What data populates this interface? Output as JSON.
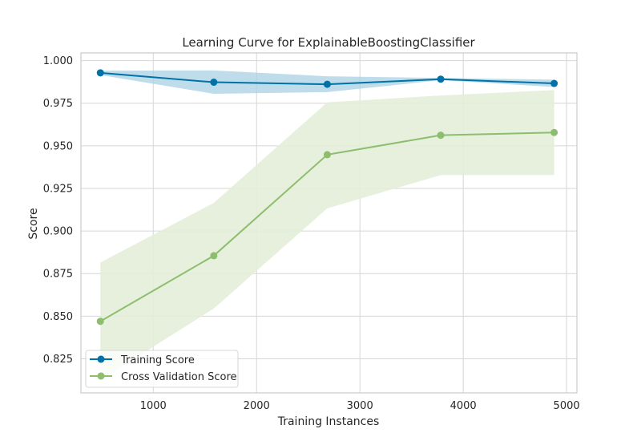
{
  "chart_data": {
    "type": "line",
    "title": "Learning Curve for ExplainableBoostingClassifier",
    "xlabel": "Training Instances",
    "ylabel": "Score",
    "xlim": [
      300,
      5100
    ],
    "ylim": [
      0.805,
      1.0045
    ],
    "xticks": [
      1000,
      2000,
      3000,
      4000,
      5000
    ],
    "xtick_labels": [
      "1000",
      "2000",
      "3000",
      "4000",
      "5000"
    ],
    "yticks": [
      0.825,
      0.85,
      0.875,
      0.9,
      0.925,
      0.95,
      0.975,
      1.0
    ],
    "ytick_labels": [
      "0.825",
      "0.850",
      "0.875",
      "0.900",
      "0.925",
      "0.950",
      "0.975",
      "1.000"
    ],
    "grid": true,
    "legend_position": "lower-left",
    "x": [
      488,
      1586,
      2684,
      3782,
      4880
    ],
    "series": [
      {
        "name": "Training Score",
        "color": "#0072a7",
        "band_color": "#a9d0e3",
        "values": [
          0.9928,
          0.9873,
          0.9861,
          0.9891,
          0.9866
        ],
        "lower": [
          0.9915,
          0.9805,
          0.9815,
          0.9885,
          0.9845
        ],
        "upper": [
          0.9941,
          0.9942,
          0.9908,
          0.9898,
          0.9888
        ]
      },
      {
        "name": "Cross Validation Score",
        "color": "#8dbd6e",
        "band_color": "#e3eed8",
        "values": [
          0.847,
          0.8855,
          0.9448,
          0.9562,
          0.9578
        ],
        "lower": [
          0.8125,
          0.8545,
          0.9133,
          0.9328,
          0.9328
        ],
        "upper": [
          0.8815,
          0.9165,
          0.9755,
          0.9795,
          0.9827
        ]
      }
    ]
  }
}
